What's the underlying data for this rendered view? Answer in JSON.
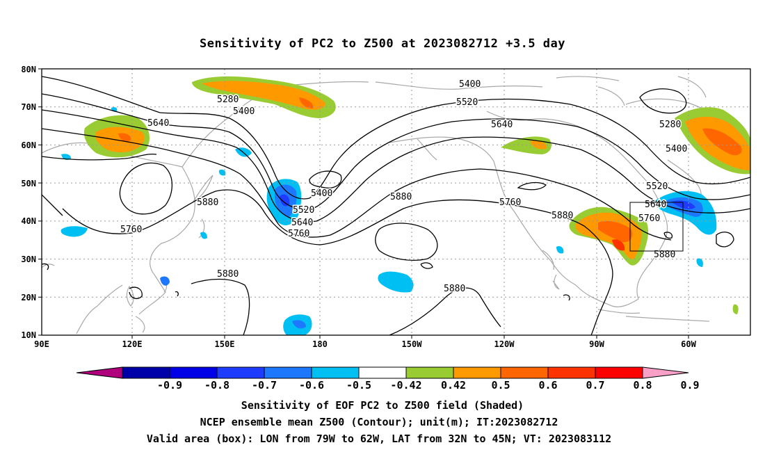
{
  "title": "Sensitivity of PC2 to Z500 at 2023082712 +3.5 day",
  "lat_labels": [
    "80N",
    "70N",
    "60N",
    "50N",
    "40N",
    "30N",
    "20N",
    "10N"
  ],
  "lon_labels": [
    "90E",
    "120E",
    "150E",
    "180",
    "150W",
    "120W",
    "90W",
    "60W"
  ],
  "contour_labels": [
    "5280",
    "5400",
    "5520",
    "5640",
    "5760",
    "5880"
  ],
  "colorbar": {
    "labels": [
      "-0.9",
      "-0.8",
      "-0.7",
      "-0.6",
      "-0.5",
      "-0.42",
      "0.42",
      "0.5",
      "0.6",
      "0.7",
      "0.8",
      "0.9"
    ],
    "colors": [
      "#b0007e",
      "#0000a8",
      "#0000e6",
      "#1e3cff",
      "#1e78ff",
      "#00bff2",
      "#ffffff",
      "#99cc33",
      "#ff9900",
      "#ff6600",
      "#ff3300",
      "#ff0000",
      "#f8a0c8"
    ]
  },
  "footer": [
    "Sensitivity of EOF PC2 to Z500 field (Shaded)",
    "NCEP ensemble mean Z500 (Contour); unit(m); IT:2023082712",
    "Valid area (box): LON from 79W to 62W, LAT from 32N to 45N; VT: 2023083112"
  ]
}
